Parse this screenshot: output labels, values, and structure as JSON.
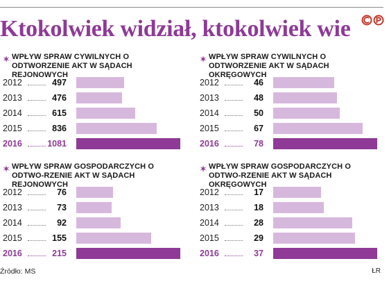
{
  "headline": "Ktokolwiek widział, ktokolwiek wie",
  "footer": {
    "source": "Źródło: MS",
    "author": "ŁR"
  },
  "colors": {
    "accent": "#8e3a96",
    "bar_light": "#d7b8dd"
  },
  "icons": {
    "logo": "cp-logo",
    "bullet": "sparkle-icon"
  },
  "chart_data": [
    {
      "type": "bar",
      "title": "Wpływ spraw cywilnych o odtworzenie akt w sądach rejonowych",
      "categories": [
        "2012",
        "2013",
        "2014",
        "2015",
        "2016"
      ],
      "values": [
        497,
        476,
        615,
        836,
        1081
      ],
      "highlight": "2016",
      "xlabel": "",
      "ylabel": ""
    },
    {
      "type": "bar",
      "title": "Wpływ spraw cywilnych o odtworzenie akt w sądach okręgowych",
      "categories": [
        "2012",
        "2013",
        "2014",
        "2015",
        "2016"
      ],
      "values": [
        46,
        48,
        50,
        67,
        78
      ],
      "highlight": "2016",
      "xlabel": "",
      "ylabel": ""
    },
    {
      "type": "bar",
      "title": "Wpływ spraw gospodarczych o odtwo-rzenie akt w sądach rejonowych",
      "categories": [
        "2012",
        "2013",
        "2014",
        "2015",
        "2016"
      ],
      "values": [
        76,
        73,
        92,
        155,
        215
      ],
      "highlight": "2016",
      "xlabel": "",
      "ylabel": ""
    },
    {
      "type": "bar",
      "title": "Wpływ spraw gospodarczych o odtwo-rzenie akt w sądach okręgowych",
      "categories": [
        "2012",
        "2013",
        "2014",
        "2015",
        "2016"
      ],
      "values": [
        17,
        18,
        28,
        29,
        37
      ],
      "highlight": "2016",
      "xlabel": "",
      "ylabel": ""
    }
  ]
}
